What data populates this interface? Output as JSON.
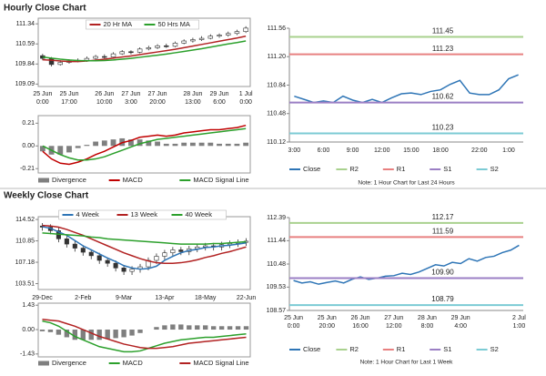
{
  "headers": [
    "Hourly Close Chart",
    "Weekly Close Chart"
  ],
  "chart_data": [
    {
      "type": "candlestick",
      "ylim": [
        109.0,
        111.55
      ],
      "yticks": [
        111.34,
        110.59,
        109.84,
        109.09
      ],
      "categories": [
        [
          "25 Jun",
          "0:00"
        ],
        null,
        null,
        [
          "25 Jun",
          "17:00"
        ],
        null,
        null,
        null,
        [
          "26 Jun",
          "10:00"
        ],
        null,
        null,
        [
          "27 Jun",
          "3:00"
        ],
        null,
        null,
        [
          "27 Jun",
          "20:00"
        ],
        null,
        null,
        null,
        [
          "28 Jun",
          "13:00"
        ],
        null,
        null,
        [
          "29 Jun",
          "6:00"
        ],
        null,
        null,
        [
          "1 Jul",
          "0:00"
        ]
      ],
      "candle_color": "#333333",
      "candles": [
        [
          110.15,
          110.22,
          109.98,
          110.05
        ],
        [
          110.05,
          110.1,
          109.75,
          109.82
        ],
        [
          109.82,
          109.98,
          109.78,
          109.9
        ],
        [
          109.9,
          110.02,
          109.85,
          109.95
        ],
        [
          109.95,
          110.05,
          109.9,
          109.98
        ],
        [
          109.98,
          110.12,
          109.92,
          110.05
        ],
        [
          110.05,
          110.18,
          110.0,
          110.12
        ],
        [
          110.12,
          110.2,
          110.02,
          110.1
        ],
        [
          110.1,
          110.28,
          110.05,
          110.22
        ],
        [
          110.22,
          110.36,
          110.18,
          110.3
        ],
        [
          110.3,
          110.35,
          110.2,
          110.28
        ],
        [
          110.28,
          110.46,
          110.24,
          110.4
        ],
        [
          110.4,
          110.52,
          110.35,
          110.45
        ],
        [
          110.45,
          110.58,
          110.4,
          110.52
        ],
        [
          110.52,
          110.6,
          110.44,
          110.5
        ],
        [
          110.5,
          110.68,
          110.46,
          110.62
        ],
        [
          110.62,
          110.76,
          110.58,
          110.7
        ],
        [
          110.7,
          110.82,
          110.64,
          110.75
        ],
        [
          110.75,
          110.88,
          110.7,
          110.8
        ],
        [
          110.8,
          110.95,
          110.76,
          110.88
        ],
        [
          110.88,
          110.98,
          110.82,
          110.92
        ],
        [
          110.92,
          111.05,
          110.86,
          110.98
        ],
        [
          110.98,
          111.12,
          110.92,
          111.05
        ],
        [
          111.05,
          111.25,
          111.0,
          111.18
        ]
      ],
      "series": [
        {
          "name": "20 Hr MA",
          "color": "#b22222",
          "values": [
            110.0,
            109.98,
            109.95,
            109.93,
            109.93,
            109.95,
            109.98,
            110.02,
            110.06,
            110.1,
            110.14,
            110.19,
            110.24,
            110.29,
            110.34,
            110.39,
            110.45,
            110.51,
            110.57,
            110.63,
            110.69,
            110.75,
            110.81,
            110.88
          ]
        },
        {
          "name": "50 Hrs MA",
          "color": "#2ca02c",
          "values": [
            110.1,
            110.06,
            110.02,
            109.99,
            109.97,
            109.96,
            109.96,
            109.97,
            109.99,
            110.02,
            110.05,
            110.09,
            110.13,
            110.17,
            110.21,
            110.26,
            110.31,
            110.36,
            110.41,
            110.47,
            110.53,
            110.59,
            110.64,
            110.7
          ]
        }
      ]
    },
    {
      "type": "macd",
      "ylim": [
        -0.25,
        0.28
      ],
      "yticks": [
        0.21,
        {
          "value": 0,
          "label": "0.00"
        },
        -0.21
      ],
      "series": [
        {
          "name": "Divergence",
          "color": "#7f7f7f",
          "style": "bar",
          "values": [
            -0.05,
            -0.08,
            -0.08,
            -0.06,
            -0.02,
            0.01,
            0.04,
            0.05,
            0.06,
            0.07,
            0.06,
            0.06,
            0.05,
            0.04,
            0.02,
            0.02,
            0.03,
            0.03,
            0.03,
            0.03,
            0.02,
            0.02,
            0.02,
            0.03
          ]
        },
        {
          "name": "MACD",
          "color": "#c00000",
          "style": "line",
          "values": [
            -0.05,
            -0.12,
            -0.16,
            -0.17,
            -0.15,
            -0.12,
            -0.08,
            -0.05,
            -0.01,
            0.03,
            0.05,
            0.08,
            0.09,
            0.1,
            0.09,
            0.1,
            0.12,
            0.13,
            0.14,
            0.15,
            0.15,
            0.16,
            0.17,
            0.19
          ]
        },
        {
          "name": "MACD Signal Line",
          "color": "#2ca02c",
          "style": "line",
          "values": [
            0.0,
            -0.04,
            -0.08,
            -0.11,
            -0.13,
            -0.13,
            -0.12,
            -0.1,
            -0.07,
            -0.04,
            -0.01,
            0.02,
            0.04,
            0.06,
            0.07,
            0.08,
            0.09,
            0.1,
            0.11,
            0.12,
            0.13,
            0.14,
            0.15,
            0.16
          ]
        }
      ]
    },
    {
      "type": "line",
      "ylim": [
        110.12,
        111.56
      ],
      "yticks": [
        111.56,
        {
          "value": 111.2,
          "label": "111.20"
        },
        110.84,
        110.48,
        110.12
      ],
      "categories": [
        "3:00",
        null,
        null,
        "6:00",
        null,
        null,
        "9:00",
        null,
        null,
        "12:00",
        null,
        null,
        "15:00",
        null,
        null,
        "18:00",
        null,
        null,
        null,
        "22:00",
        null,
        null,
        "1:00",
        null
      ],
      "series": [
        {
          "name": "Close",
          "color": "#2e75b6",
          "values": [
            110.7,
            110.66,
            110.62,
            110.64,
            110.62,
            110.7,
            110.65,
            110.62,
            110.66,
            110.62,
            110.68,
            110.73,
            110.74,
            110.72,
            110.76,
            110.78,
            110.85,
            110.9,
            110.74,
            110.72,
            110.72,
            110.78,
            110.92,
            110.97
          ]
        },
        {
          "name": "R2",
          "color": "#a9d18e",
          "value": 111.45
        },
        {
          "name": "R1",
          "color": "#e88080",
          "value": 111.23
        },
        {
          "name": "S1",
          "color": "#9b7fc4",
          "value": 110.62
        },
        {
          "name": "S2",
          "color": "#7ccbd4",
          "value": 110.23
        }
      ],
      "note": "Note: 1 Hour Chart for Last 24 Hours"
    },
    {
      "type": "candlestick",
      "ylim": [
        102.5,
        115.0
      ],
      "yticks": [
        114.52,
        110.85,
        107.18,
        103.51
      ],
      "categories": [
        "29-Dec",
        null,
        null,
        null,
        null,
        "2-Feb",
        null,
        null,
        null,
        null,
        "9-Mar",
        null,
        null,
        null,
        null,
        "13-Apr",
        null,
        null,
        null,
        null,
        "18-May",
        null,
        null,
        null,
        null,
        "22-Jun"
      ],
      "candle_color": "#333333",
      "candles": [
        [
          113.4,
          113.9,
          112.6,
          113.2
        ],
        [
          113.2,
          113.7,
          112.0,
          112.6
        ],
        [
          112.6,
          113.1,
          110.6,
          111.2
        ],
        [
          111.2,
          111.7,
          109.7,
          110.3
        ],
        [
          110.3,
          110.8,
          109.0,
          109.6
        ],
        [
          109.6,
          110.1,
          108.3,
          108.9
        ],
        [
          108.9,
          109.4,
          107.7,
          108.3
        ],
        [
          108.3,
          108.8,
          106.9,
          107.5
        ],
        [
          107.5,
          108.0,
          106.4,
          107.0
        ],
        [
          107.0,
          107.5,
          105.6,
          106.2
        ],
        [
          106.2,
          106.7,
          105.0,
          105.6
        ],
        [
          105.6,
          106.5,
          105.0,
          106.0
        ],
        [
          106.0,
          106.9,
          105.4,
          106.4
        ],
        [
          106.4,
          108.0,
          105.8,
          107.5
        ],
        [
          107.5,
          108.7,
          106.9,
          108.2
        ],
        [
          108.2,
          109.3,
          107.6,
          108.8
        ],
        [
          108.8,
          109.8,
          108.2,
          109.3
        ],
        [
          109.3,
          109.8,
          108.4,
          109.0
        ],
        [
          109.0,
          110.0,
          108.4,
          109.5
        ],
        [
          109.5,
          110.3,
          108.9,
          109.8
        ],
        [
          109.8,
          110.5,
          109.2,
          110.0
        ],
        [
          110.0,
          110.5,
          109.2,
          109.8
        ],
        [
          109.8,
          110.7,
          109.2,
          110.2
        ],
        [
          110.2,
          110.9,
          109.6,
          110.4
        ],
        [
          110.4,
          111.1,
          109.8,
          110.6
        ],
        [
          110.6,
          111.3,
          110.0,
          110.8
        ]
      ],
      "series": [
        {
          "name": "4 Week",
          "color": "#2e75b6",
          "values": [
            113.3,
            113.0,
            112.4,
            111.8,
            110.9,
            110.0,
            109.3,
            108.6,
            107.9,
            107.3,
            106.6,
            106.2,
            106.0,
            106.1,
            106.5,
            107.5,
            108.2,
            108.8,
            109.2,
            109.4,
            109.7,
            109.8,
            110.0,
            110.1,
            110.3,
            110.5
          ]
        },
        {
          "name": "13 Week",
          "color": "#b22222",
          "values": [
            113.5,
            113.4,
            113.2,
            112.8,
            112.3,
            111.8,
            111.2,
            110.6,
            110.0,
            109.4,
            108.8,
            108.3,
            107.8,
            107.4,
            107.1,
            107.0,
            107.0,
            107.1,
            107.3,
            107.6,
            108.0,
            108.3,
            108.7,
            109.0,
            109.4,
            109.8
          ]
        },
        {
          "name": "40 Week",
          "color": "#2ca02c",
          "values": [
            112.2,
            112.1,
            112.0,
            111.9,
            111.8,
            111.7,
            111.5,
            111.4,
            111.2,
            111.1,
            111.0,
            110.9,
            110.8,
            110.7,
            110.6,
            110.5,
            110.4,
            110.3,
            110.3,
            110.3,
            110.3,
            110.4,
            110.4,
            110.5,
            110.6,
            110.7
          ]
        }
      ]
    },
    {
      "type": "macd",
      "ylim": [
        -1.6,
        1.55
      ],
      "yticks": [
        1.43,
        {
          "value": 0,
          "label": "0.00"
        },
        -1.43
      ],
      "series": [
        {
          "name": "Divergence",
          "color": "#7f7f7f",
          "style": "bar",
          "values": [
            -0.1,
            -0.15,
            -0.3,
            -0.45,
            -0.6,
            -0.6,
            -0.6,
            -0.6,
            -0.55,
            -0.5,
            -0.45,
            -0.35,
            -0.2,
            0.0,
            0.15,
            0.25,
            0.3,
            0.3,
            0.25,
            0.25,
            0.25,
            0.2,
            0.2,
            0.2,
            0.2,
            0.2
          ]
        },
        {
          "name": "MACD",
          "color": "#2ca02c",
          "style": "line",
          "values": [
            0.5,
            0.4,
            0.2,
            -0.1,
            -0.4,
            -0.6,
            -0.8,
            -1.0,
            -1.1,
            -1.2,
            -1.3,
            -1.3,
            -1.25,
            -1.1,
            -0.95,
            -0.8,
            -0.7,
            -0.6,
            -0.55,
            -0.5,
            -0.45,
            -0.45,
            -0.4,
            -0.35,
            -0.3,
            -0.25
          ]
        },
        {
          "name": "MACD Signal Line",
          "color": "#b22222",
          "style": "line",
          "values": [
            0.6,
            0.55,
            0.5,
            0.35,
            0.2,
            0.0,
            -0.2,
            -0.4,
            -0.55,
            -0.7,
            -0.85,
            -0.95,
            -1.05,
            -1.1,
            -1.1,
            -1.05,
            -1.0,
            -0.9,
            -0.8,
            -0.75,
            -0.7,
            -0.65,
            -0.6,
            -0.55,
            -0.5,
            -0.45
          ]
        }
      ]
    },
    {
      "type": "line",
      "ylim": [
        108.57,
        112.39
      ],
      "yticks": [
        112.39,
        111.44,
        110.48,
        109.53,
        108.57
      ],
      "categories": [
        [
          "25 Jun",
          "0:00"
        ],
        null,
        null,
        null,
        [
          "25 Jun",
          "20:00"
        ],
        null,
        null,
        null,
        [
          "26 Jun",
          "16:00"
        ],
        null,
        null,
        null,
        [
          "27 Jun",
          "12:00"
        ],
        null,
        null,
        null,
        [
          "28 Jun",
          "8:00"
        ],
        null,
        null,
        null,
        [
          "29 Jun",
          "4:00"
        ],
        null,
        null,
        null,
        null,
        null,
        null,
        [
          "2 Jul",
          "1:00"
        ]
      ],
      "series": [
        {
          "name": "Close",
          "color": "#2e75b6",
          "values": [
            109.8,
            109.7,
            109.75,
            109.65,
            109.72,
            109.78,
            109.7,
            109.85,
            109.95,
            109.85,
            109.9,
            109.98,
            110.0,
            110.1,
            110.05,
            110.15,
            110.3,
            110.45,
            110.4,
            110.55,
            110.5,
            110.7,
            110.6,
            110.75,
            110.8,
            110.95,
            111.05,
            111.25
          ]
        },
        {
          "name": "R2",
          "color": "#a9d18e",
          "value": 112.17
        },
        {
          "name": "R1",
          "color": "#e88080",
          "value": 111.59
        },
        {
          "name": "S1",
          "color": "#9b7fc4",
          "value": 109.9,
          "value_label": "109.90"
        },
        {
          "name": "S2",
          "color": "#7ccbd4",
          "value": 108.79
        }
      ],
      "note": "Note: 1 Hour Chart for Last 1 Week"
    }
  ]
}
